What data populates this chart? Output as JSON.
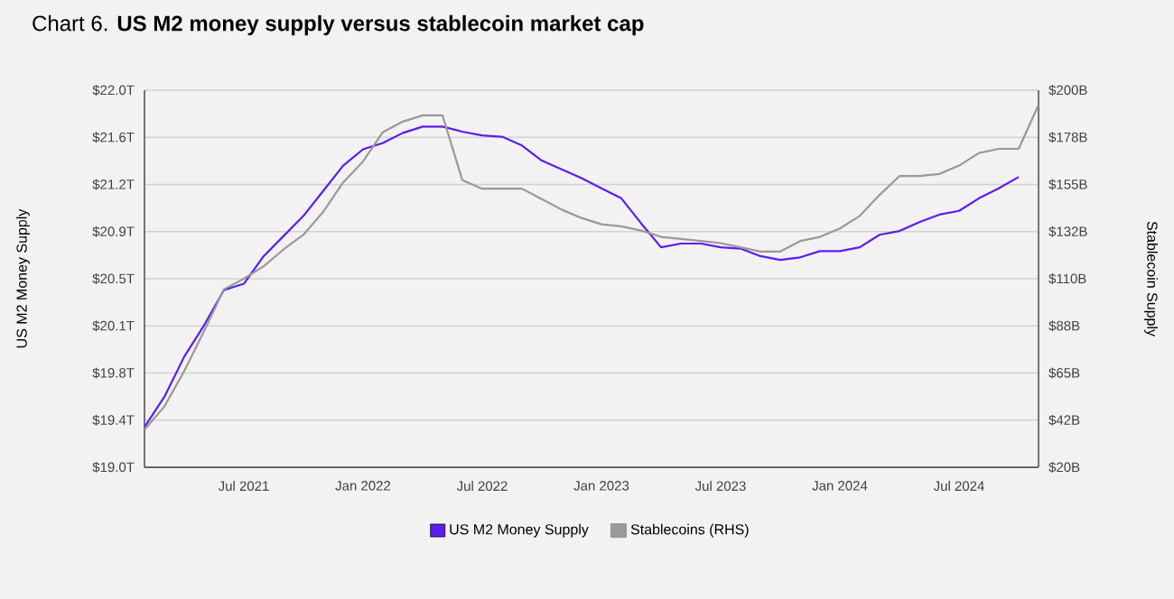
{
  "chart_data": {
    "type": "line",
    "title": "Chart 6. **US M2 money supply versus stablecoin market cap**",
    "ylabel": "US M2 Money Supply",
    "y2label": "Stablecoin Supply",
    "x": [
      "2021-02",
      "2021-03",
      "2021-04",
      "2021-05",
      "2021-06",
      "2021-07",
      "2021-08",
      "2021-09",
      "2021-10",
      "2021-11",
      "2021-12",
      "2022-01",
      "2022-02",
      "2022-03",
      "2022-04",
      "2022-05",
      "2022-06",
      "2022-07",
      "2022-08",
      "2022-09",
      "2022-10",
      "2022-11",
      "2022-12",
      "2023-01",
      "2023-02",
      "2023-03",
      "2023-04",
      "2023-05",
      "2023-06",
      "2023-07",
      "2023-08",
      "2023-09",
      "2023-10",
      "2023-11",
      "2023-12",
      "2024-01",
      "2024-02",
      "2024-03",
      "2024-04",
      "2024-05",
      "2024-06",
      "2024-07",
      "2024-08",
      "2024-09",
      "2024-10",
      "2024-11"
    ],
    "series": [
      {
        "name": "US M2 Money Supply",
        "color": "#5b1cf5",
        "values": [
          19.32,
          19.56,
          19.88,
          20.13,
          20.41,
          20.46,
          20.68,
          20.84,
          21.0,
          21.2,
          21.4,
          21.53,
          21.58,
          21.66,
          21.71,
          21.71,
          21.67,
          21.64,
          21.63,
          21.56,
          21.44,
          21.37,
          21.3,
          21.22,
          21.14,
          20.94,
          20.75,
          20.78,
          20.78,
          20.75,
          20.74,
          20.68,
          20.65,
          20.67,
          20.72,
          20.72,
          20.75,
          20.85,
          20.88,
          20.95,
          21.01,
          21.04,
          21.14,
          21.22,
          21.31,
          null
        ]
      },
      {
        "name": "Stablecoins (RHS)",
        "color": "#999999",
        "axis": "y2",
        "values": [
          38,
          49,
          66,
          85,
          105,
          110,
          116,
          124,
          131,
          142,
          156,
          166,
          180,
          185,
          188,
          188,
          157,
          153,
          153,
          153,
          148,
          143,
          139,
          136,
          135,
          133,
          130,
          129,
          128,
          127,
          125,
          123,
          123,
          128,
          130,
          134,
          140,
          150,
          159,
          159,
          160,
          164,
          170,
          172,
          172,
          193
        ]
      }
    ],
    "xlim": [
      "2021-02",
      "2024-11"
    ],
    "xticks": [
      {
        "value": "2021-07",
        "label": "Jul 2021"
      },
      {
        "value": "2022-01",
        "label": "Jan 2022"
      },
      {
        "value": "2022-07",
        "label": "Jul 2022"
      },
      {
        "value": "2023-01",
        "label": "Jan 2023"
      },
      {
        "value": "2023-07",
        "label": "Jul 2023"
      },
      {
        "value": "2024-01",
        "label": "Jan 2024"
      },
      {
        "value": "2024-07",
        "label": "Jul 2024"
      }
    ],
    "ylim": [
      19.0,
      22.0
    ],
    "yticks": [
      {
        "value": 19.0,
        "label": "$19.0T"
      },
      {
        "value": 19.375,
        "label": "$19.4T"
      },
      {
        "value": 19.75,
        "label": "$19.8T"
      },
      {
        "value": 20.125,
        "label": "$20.1T"
      },
      {
        "value": 20.5,
        "label": "$20.5T"
      },
      {
        "value": 20.875,
        "label": "$20.9T"
      },
      {
        "value": 21.25,
        "label": "$21.2T"
      },
      {
        "value": 21.625,
        "label": "$21.6T"
      },
      {
        "value": 22.0,
        "label": "$22.0T"
      }
    ],
    "y2lim": [
      20,
      200
    ],
    "y2ticks": [
      {
        "value": 20,
        "label": "$20B"
      },
      {
        "value": 42.5,
        "label": "$42B"
      },
      {
        "value": 65,
        "label": "$65B"
      },
      {
        "value": 87.5,
        "label": "$88B"
      },
      {
        "value": 110,
        "label": "$110B"
      },
      {
        "value": 132.5,
        "label": "$132B"
      },
      {
        "value": 155,
        "label": "$155B"
      },
      {
        "value": 177.5,
        "label": "$178B"
      },
      {
        "value": 200,
        "label": "$200B"
      }
    ],
    "grid": "y",
    "legend": "bottom",
    "marker": "none",
    "line_style": "solid"
  }
}
